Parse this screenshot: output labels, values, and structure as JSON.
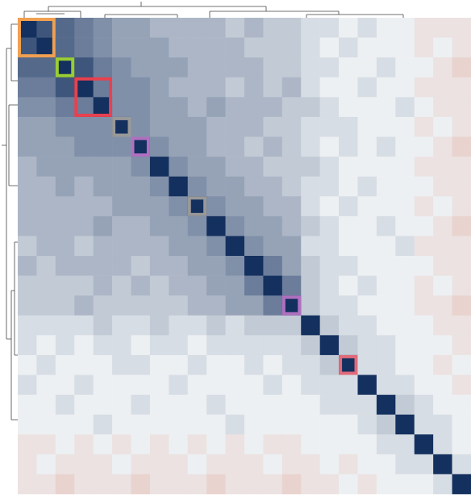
{
  "chart_data": {
    "type": "heatmap",
    "colors": {
      "low": "#d9603b",
      "mid": "#edf0f3",
      "high": "#14305e"
    },
    "values": [
      [
        1,
        0.8,
        0.7,
        0.6,
        0.5,
        0.4,
        0.4,
        0.3,
        0.3,
        0.3,
        0.3,
        0.2,
        0.3,
        0.2,
        0.2,
        0.1,
        0.1,
        0,
        0.1,
        0,
        0,
        -0.1,
        -0.1,
        -0.1
      ],
      [
        0.8,
        1,
        0.7,
        0.6,
        0.5,
        0.4,
        0.4,
        0.4,
        0.3,
        0.3,
        0.3,
        0.3,
        0.2,
        0.2,
        0.2,
        0.1,
        0,
        0.1,
        0,
        0,
        0,
        -0.1,
        0,
        -0.1
      ],
      [
        0.7,
        0.7,
        1,
        0.8,
        0.6,
        0.5,
        0.4,
        0.4,
        0.4,
        0.3,
        0.3,
        0.3,
        0.3,
        0.2,
        0.2,
        0.1,
        0.1,
        0,
        0,
        0.1,
        0,
        0,
        -0.1,
        -0.2
      ],
      [
        0.6,
        0.6,
        0.8,
        1,
        0.6,
        0.5,
        0.5,
        0.4,
        0.3,
        0.3,
        0.3,
        0.2,
        0.3,
        0.2,
        0.3,
        0.1,
        0,
        0,
        0.1,
        0,
        0,
        -0.1,
        -0.1,
        -0.1
      ],
      [
        0.5,
        0.5,
        0.6,
        0.6,
        1,
        0.5,
        0.5,
        0.4,
        0.4,
        0.3,
        0.4,
        0.3,
        0.3,
        0.3,
        0.2,
        0.2,
        0.1,
        0,
        0,
        0,
        0.1,
        0,
        -0.1,
        -0.1
      ],
      [
        0.4,
        0.4,
        0.5,
        0.5,
        0.5,
        1,
        0.5,
        0.4,
        0.4,
        0.4,
        0.3,
        0.3,
        0.3,
        0.2,
        0.2,
        0.1,
        0.1,
        0.1,
        0,
        0,
        0,
        -0.1,
        0,
        -0.1
      ],
      [
        0.4,
        0.4,
        0.4,
        0.5,
        0.5,
        0.5,
        1,
        0.5,
        0.4,
        0.4,
        0.3,
        0.3,
        0.2,
        0.3,
        0.2,
        0.1,
        0,
        0.1,
        0,
        0.1,
        0,
        0,
        -0.1,
        -0.2
      ],
      [
        0.3,
        0.4,
        0.4,
        0.4,
        0.4,
        0.4,
        0.5,
        1,
        0.5,
        0.4,
        0.4,
        0.3,
        0.3,
        0.2,
        0.2,
        0.2,
        0.1,
        0,
        0,
        0,
        0,
        -0.1,
        -0.1,
        -0.1
      ],
      [
        0.3,
        0.3,
        0.4,
        0.3,
        0.4,
        0.4,
        0.4,
        0.5,
        1,
        0.5,
        0.4,
        0.4,
        0.3,
        0.3,
        0.2,
        0.1,
        0.1,
        0,
        0.1,
        0,
        0,
        0,
        -0.1,
        -0.1
      ],
      [
        0.3,
        0.3,
        0.3,
        0.3,
        0.3,
        0.4,
        0.4,
        0.4,
        0.5,
        1,
        0.5,
        0.4,
        0.4,
        0.3,
        0.3,
        0.1,
        0,
        0.1,
        0,
        0,
        0,
        -0.1,
        0,
        -0.1
      ],
      [
        0.3,
        0.3,
        0.3,
        0.3,
        0.4,
        0.3,
        0.3,
        0.4,
        0.4,
        0.5,
        1,
        0.5,
        0.4,
        0.4,
        0.3,
        0.2,
        0.1,
        0,
        0,
        0.1,
        0,
        0,
        -0.1,
        -0.2
      ],
      [
        0.2,
        0.3,
        0.3,
        0.2,
        0.3,
        0.3,
        0.3,
        0.3,
        0.4,
        0.4,
        0.5,
        1,
        0.5,
        0.4,
        0.4,
        0.1,
        0.1,
        0,
        0,
        0,
        0.1,
        -0.1,
        -0.1,
        -0.1
      ],
      [
        0.3,
        0.2,
        0.3,
        0.3,
        0.3,
        0.3,
        0.2,
        0.3,
        0.3,
        0.4,
        0.4,
        0.5,
        1,
        0.6,
        0.4,
        0.2,
        0.1,
        0.1,
        0,
        0,
        0,
        0,
        -0.1,
        -0.1
      ],
      [
        0.2,
        0.2,
        0.2,
        0.2,
        0.3,
        0.2,
        0.3,
        0.2,
        0.3,
        0.3,
        0.4,
        0.4,
        0.6,
        1,
        0.6,
        0.2,
        0.1,
        0,
        0.1,
        0,
        0,
        -0.1,
        0,
        -0.1
      ],
      [
        0.2,
        0.2,
        0.2,
        0.3,
        0.2,
        0.2,
        0.2,
        0.2,
        0.2,
        0.3,
        0.3,
        0.4,
        0.4,
        0.6,
        1,
        0.2,
        0.1,
        0.1,
        0,
        0,
        0,
        -0.1,
        -0.1,
        -0.2
      ],
      [
        0.1,
        0.1,
        0.1,
        0.1,
        0.2,
        0.1,
        0.1,
        0.2,
        0.1,
        0.1,
        0.2,
        0.1,
        0.2,
        0.2,
        0.2,
        1,
        0.2,
        0.1,
        0.1,
        0,
        0,
        0,
        -0.1,
        -0.1
      ],
      [
        0.1,
        0,
        0.1,
        0,
        0.1,
        0.1,
        0,
        0.1,
        0.1,
        0,
        0.1,
        0.1,
        0.1,
        0.1,
        0.1,
        0.2,
        1,
        0.2,
        0.1,
        0.1,
        0,
        0,
        0,
        -0.1
      ],
      [
        0,
        0.1,
        0,
        0,
        0,
        0.1,
        0.1,
        0,
        0,
        0.1,
        0,
        0,
        0.1,
        0,
        0.1,
        0.1,
        0.2,
        1,
        0.1,
        0.1,
        0,
        0,
        -0.1,
        0
      ],
      [
        0.1,
        0,
        0,
        0.1,
        0,
        0,
        0,
        0,
        0.1,
        0,
        0,
        0,
        0,
        0.1,
        0,
        0.1,
        0.1,
        0.1,
        1,
        0.1,
        0.1,
        0,
        0,
        -0.1
      ],
      [
        0,
        0,
        0.1,
        0,
        0,
        0,
        0.1,
        0,
        0,
        0,
        0.1,
        0,
        0,
        0,
        0,
        0,
        0.1,
        0.1,
        0.1,
        1,
        0.2,
        0.1,
        0,
        0
      ],
      [
        0,
        0,
        0,
        0,
        0.1,
        0,
        0,
        0,
        0,
        0,
        0,
        0.1,
        0,
        0,
        0,
        0,
        0,
        0,
        0.1,
        0.2,
        1,
        0.1,
        0.1,
        0
      ],
      [
        -0.1,
        -0.1,
        0,
        -0.1,
        0,
        -0.1,
        0,
        -0.1,
        0,
        -0.1,
        0,
        -0.1,
        0,
        -0.1,
        -0.1,
        0,
        0,
        0,
        0,
        0.1,
        0.1,
        1,
        0.1,
        0
      ],
      [
        -0.1,
        0,
        -0.1,
        -0.1,
        -0.1,
        0,
        -0.1,
        -0.1,
        -0.1,
        0,
        -0.1,
        -0.1,
        -0.1,
        0,
        -0.1,
        -0.1,
        0,
        -0.1,
        0,
        0,
        0.1,
        0.1,
        1,
        0.1
      ],
      [
        -0.1,
        -0.1,
        -0.2,
        -0.1,
        -0.1,
        -0.1,
        -0.2,
        -0.1,
        -0.1,
        -0.1,
        -0.2,
        -0.1,
        -0.1,
        -0.1,
        -0.2,
        -0.1,
        -0.1,
        0,
        -0.1,
        0,
        0,
        0,
        0.1,
        1
      ]
    ]
  }
}
